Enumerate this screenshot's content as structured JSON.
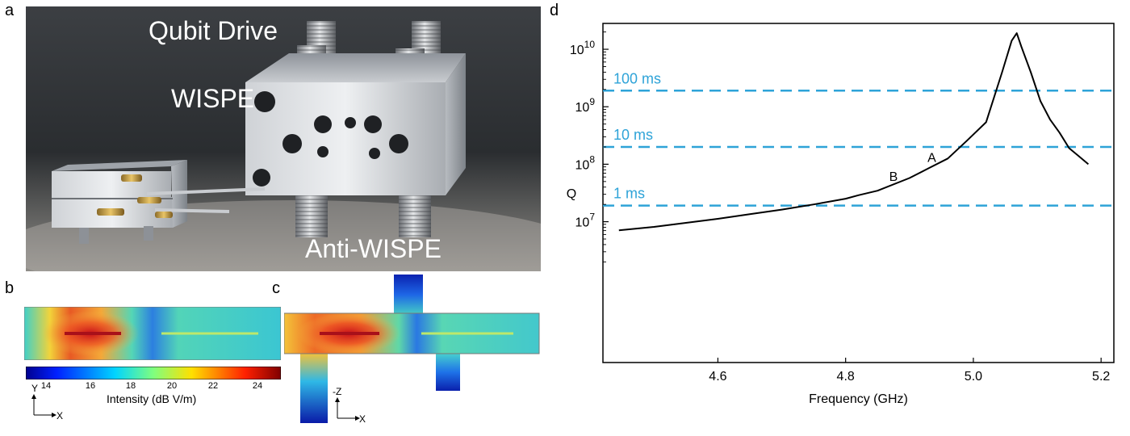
{
  "panels": {
    "a": "a",
    "b": "b",
    "c": "c",
    "d": "d"
  },
  "photo": {
    "labels": {
      "qubit_drive": "Qubit Drive",
      "wispe": "WISPE",
      "anti_wispe": "Anti-WISPE"
    }
  },
  "colorbar": {
    "ticks": [
      "14",
      "16",
      "18",
      "20",
      "22",
      "24"
    ],
    "label": "Intensity (dB V/m)"
  },
  "axes_b": {
    "vertical": "Y",
    "horizontal": "X"
  },
  "axes_c": {
    "vertical": "-Z",
    "horizontal": "X"
  },
  "chart_data": {
    "type": "line",
    "xlabel": "Frequency (GHz)",
    "ylabel": "Q",
    "xlim": [
      4.42,
      5.22
    ],
    "ylim": [
      4.55,
      10.45
    ],
    "y_scale": "log",
    "xticks": [
      4.6,
      4.8,
      5.0,
      5.2
    ],
    "xtick_labels": [
      "4.6",
      "4.8",
      "5.0",
      "5.2"
    ],
    "yticks": [
      7,
      8,
      9,
      10
    ],
    "ytick_labels": [
      {
        "base": "10",
        "exp": "7"
      },
      {
        "base": "10",
        "exp": "8"
      },
      {
        "base": "10",
        "exp": "9"
      },
      {
        "base": "10",
        "exp": "10"
      }
    ],
    "series": [
      {
        "color": "#000000",
        "x": [
          4.445,
          4.5,
          4.55,
          4.6,
          4.65,
          4.7,
          4.75,
          4.8,
          4.82,
          4.85,
          4.9,
          4.93,
          4.96,
          4.99,
          5.02,
          5.045,
          5.06,
          5.068,
          5.075,
          5.09,
          5.105,
          5.12,
          5.135,
          5.15,
          5.165,
          5.18
        ],
        "log10_q": [
          6.85,
          6.91,
          6.98,
          7.05,
          7.13,
          7.21,
          7.3,
          7.4,
          7.46,
          7.54,
          7.76,
          7.93,
          8.1,
          8.41,
          8.73,
          9.6,
          10.15,
          10.28,
          10.05,
          9.6,
          9.1,
          8.78,
          8.55,
          8.28,
          8.14,
          8.0
        ]
      }
    ],
    "hlines": [
      {
        "log10_q": 9.28,
        "label": "100 ms",
        "color": "#2ea3d8"
      },
      {
        "log10_q": 8.3,
        "label": "10 ms",
        "color": "#2ea3d8"
      },
      {
        "log10_q": 7.28,
        "label": "1 ms",
        "color": "#2ea3d8"
      }
    ],
    "annotations": [
      {
        "text": "A",
        "x": 4.935,
        "log10_q": 8.04
      },
      {
        "text": "B",
        "x": 4.875,
        "log10_q": 7.71
      }
    ]
  }
}
